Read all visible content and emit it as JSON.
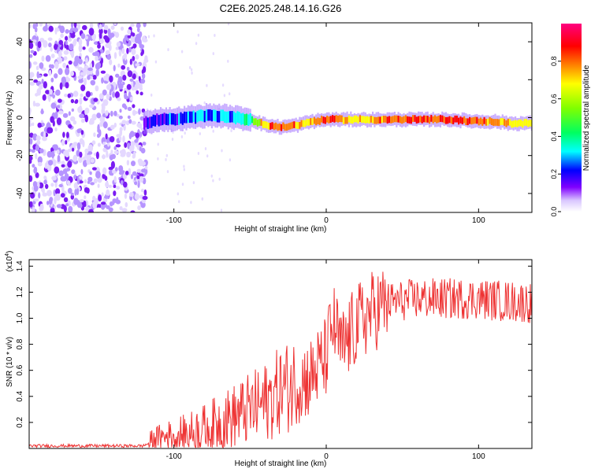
{
  "title": "C2E6.2025.248.14.16.G26",
  "chart_data": [
    {
      "type": "heatmap",
      "xlabel": "Height of straight line (km)",
      "ylabel": "Frequency (Hz)",
      "xlim": [
        -195,
        135
      ],
      "ylim": [
        -50,
        50
      ],
      "x_ticks": [
        -100,
        0,
        100
      ],
      "y_ticks": [
        -40,
        -20,
        0,
        20,
        40
      ],
      "colorbar": {
        "label": "Normalized spectral amplitude",
        "range": [
          0.0,
          1.0
        ],
        "ticks": [
          0.0,
          0.2,
          0.4,
          0.6,
          0.8
        ],
        "tick_labels": [
          "0.0",
          "0.2",
          "0.4",
          "0.6",
          "0.8"
        ],
        "colors": [
          "#ffffff",
          "#d9c6ff",
          "#8000ff",
          "#0000ff",
          "#00ffff",
          "#00ff60",
          "#80ff00",
          "#ffff00",
          "#ff8000",
          "#ff0000",
          "#ff0080"
        ]
      },
      "noise_region_x": [
        -195,
        -118
      ],
      "signal_track": {
        "x": [
          -120,
          -110,
          -100,
          -90,
          -80,
          -70,
          -60,
          -50,
          -40,
          -30,
          -20,
          -10,
          0,
          10,
          20,
          40,
          60,
          80,
          100,
          110,
          120,
          135
        ],
        "frequency": [
          -3,
          -1,
          -1,
          0,
          1,
          1,
          0,
          -1,
          -4,
          -5,
          -4,
          -2,
          -1,
          -1,
          -1,
          -1,
          -1,
          -1,
          -2,
          -2,
          -3,
          -3
        ],
        "amplitude": [
          0.3,
          0.35,
          0.38,
          0.4,
          0.42,
          0.43,
          0.45,
          0.55,
          0.85,
          0.92,
          0.85,
          0.8,
          0.95,
          0.85,
          0.75,
          0.9,
          0.93,
          0.95,
          0.9,
          0.85,
          0.8,
          0.78
        ]
      }
    },
    {
      "type": "line",
      "xlabel": "Height of straight line (km)",
      "ylabel": "SNR (10 * v/v)",
      "y_multiplier": "(x10",
      "y_multiplier_exp": "4",
      "xlim": [
        -195,
        135
      ],
      "ylim": [
        0,
        1.45
      ],
      "x_ticks": [
        -100,
        0,
        100
      ],
      "y_ticks": [
        0.2,
        0.4,
        0.6,
        0.8,
        1.0,
        1.2,
        1.4
      ],
      "y_tick_labels": [
        "0.2",
        "0.4",
        "0.6",
        "0.8",
        "1.0",
        "1.2",
        "1.4"
      ],
      "color": "#ee3333",
      "series": [
        {
          "name": "SNR",
          "x": [
            -195,
            -170,
            -140,
            -120,
            -110,
            -100,
            -90,
            -80,
            -70,
            -60,
            -50,
            -40,
            -30,
            -20,
            -10,
            0,
            3,
            5,
            10,
            20,
            30,
            40,
            60,
            80,
            100,
            120,
            135
          ],
          "values": [
            0.02,
            0.02,
            0.02,
            0.02,
            0.08,
            0.1,
            0.12,
            0.15,
            0.2,
            0.25,
            0.3,
            0.35,
            0.45,
            0.5,
            0.55,
            0.7,
            0.9,
            0.95,
            0.75,
            0.95,
            1.05,
            1.12,
            1.15,
            1.15,
            1.15,
            1.13,
            1.12
          ]
        }
      ]
    }
  ]
}
